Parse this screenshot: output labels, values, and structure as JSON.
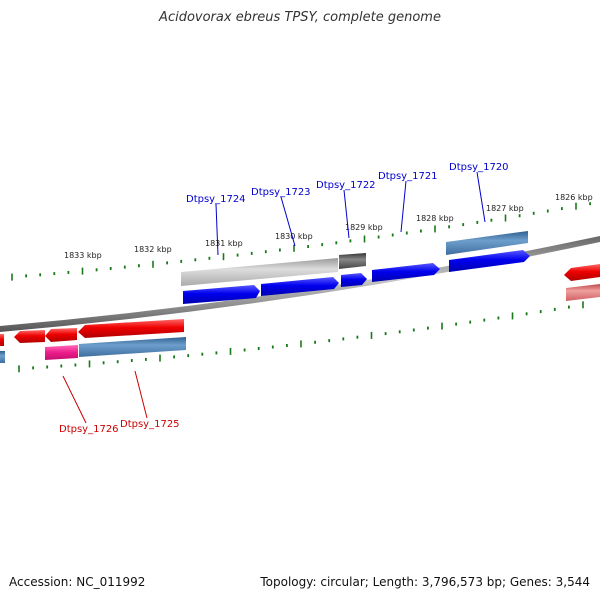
{
  "title": "Acidovorax ebreus TPSY, complete genome",
  "footer": {
    "accession": "Accession: NC_011992",
    "summary": "Topology: circular; Length: 3,796,573 bp; Genes: 3,544"
  },
  "colors": {
    "forward_gene": "#0000e6",
    "reverse_gene": "#ee0000",
    "steelblue_feature": "#4a7fb0",
    "pink_feature": "#ee1c8c",
    "gray_feature": "#b5b5b5",
    "dark_feature": "#555555",
    "tick": "#1a7a1a",
    "forward_label": "#0000cc",
    "reverse_label": "#cc0000"
  },
  "scale_labels": [
    "1833 kbp",
    "1832 kbp",
    "1831 kbp",
    "1830 kbp",
    "1829 kbp",
    "1828 kbp",
    "1827 kbp",
    "1826 kbp"
  ],
  "gene_labels_top": [
    "Dtpsy_1724",
    "Dtpsy_1723",
    "Dtpsy_1722",
    "Dtpsy_1721",
    "Dtpsy_1720"
  ],
  "gene_labels_bottom": [
    "Dtpsy_1726",
    "Dtpsy_1725"
  ]
}
